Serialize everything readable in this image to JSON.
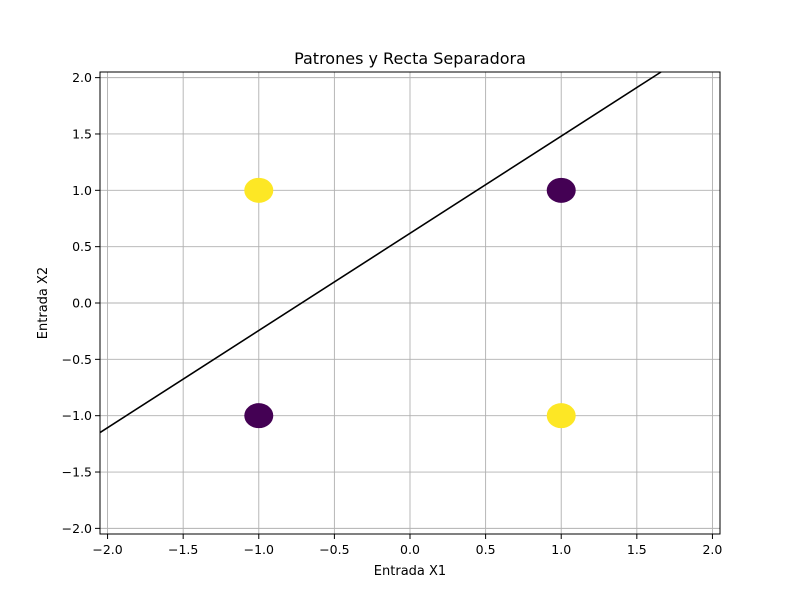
{
  "chart_data": {
    "type": "scatter",
    "title": "Patrones y Recta Separadora",
    "xlabel": "Entrada X1",
    "ylabel": "Entrada X2",
    "xlim": [
      -2.05,
      2.05
    ],
    "ylim": [
      -2.05,
      2.05
    ],
    "xticks": [
      -2.0,
      -1.5,
      -1.0,
      -0.5,
      0.0,
      0.5,
      1.0,
      1.5,
      2.0
    ],
    "yticks": [
      -2.0,
      -1.5,
      -1.0,
      -0.5,
      0.0,
      0.5,
      1.0,
      1.5,
      2.0
    ],
    "xtick_labels": [
      "−2.0",
      "−1.5",
      "−1.0",
      "−0.5",
      "0.0",
      "0.5",
      "1.0",
      "1.5",
      "2.0"
    ],
    "ytick_labels": [
      "−2.0",
      "−1.5",
      "−1.0",
      "−0.5",
      "0.0",
      "0.5",
      "1.0",
      "1.5",
      "2.0"
    ],
    "grid": true,
    "points": [
      {
        "x": -1,
        "y": 1,
        "color": "#fde725"
      },
      {
        "x": 1,
        "y": 1,
        "color": "#440154"
      },
      {
        "x": -1,
        "y": -1,
        "color": "#440154"
      },
      {
        "x": 1,
        "y": -1,
        "color": "#fde725"
      }
    ],
    "line": {
      "x": [
        -2.05,
        1.66
      ],
      "y": [
        -1.15,
        2.05
      ],
      "color": "#000000"
    },
    "colors": {
      "class_a": "#fde725",
      "class_b": "#440154",
      "grid": "#b0b0b0",
      "line": "#000000"
    }
  }
}
